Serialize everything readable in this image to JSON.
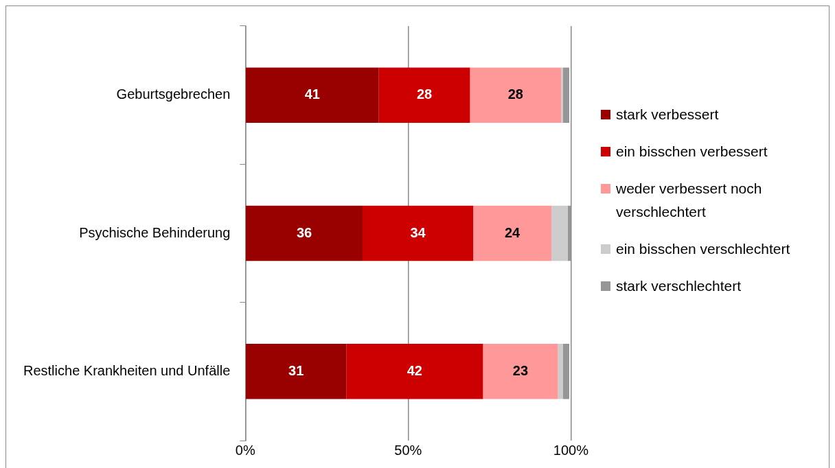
{
  "chart_data": {
    "type": "bar",
    "orientation": "horizontal",
    "stacked": true,
    "categories": [
      "Geburtsgebrechen",
      "Psychische Behinderung",
      "Restliche Krankheiten und Unfälle"
    ],
    "series": [
      {
        "name": "stark verbessert",
        "color": "#990000",
        "values": [
          41,
          36,
          31
        ],
        "value_labels": [
          "41",
          "36",
          "31"
        ]
      },
      {
        "name": "ein bisschen verbessert",
        "color": "#cc0000",
        "values": [
          28,
          34,
          42
        ],
        "value_labels": [
          "28",
          "34",
          "42"
        ]
      },
      {
        "name": "weder verbessert noch verschlechtert",
        "color": "#ff9999",
        "values": [
          28,
          24,
          23
        ],
        "value_labels": [
          "28",
          "24",
          "23"
        ]
      },
      {
        "name": "ein bisschen verschlechtert",
        "color": "#cccccc",
        "values": [
          0.5,
          5,
          1.5
        ],
        "value_labels": [
          null,
          null,
          null
        ]
      },
      {
        "name": "stark verschlechtert",
        "color": "#969696",
        "values": [
          2,
          1,
          2
        ],
        "value_labels": [
          null,
          null,
          null
        ]
      }
    ],
    "xlim": [
      0,
      100
    ],
    "xticks": [
      {
        "value": 0,
        "label": "0%"
      },
      {
        "value": 50,
        "label": "50%"
      },
      {
        "value": 100,
        "label": "100%"
      }
    ],
    "grid": "x",
    "legend": "right"
  }
}
